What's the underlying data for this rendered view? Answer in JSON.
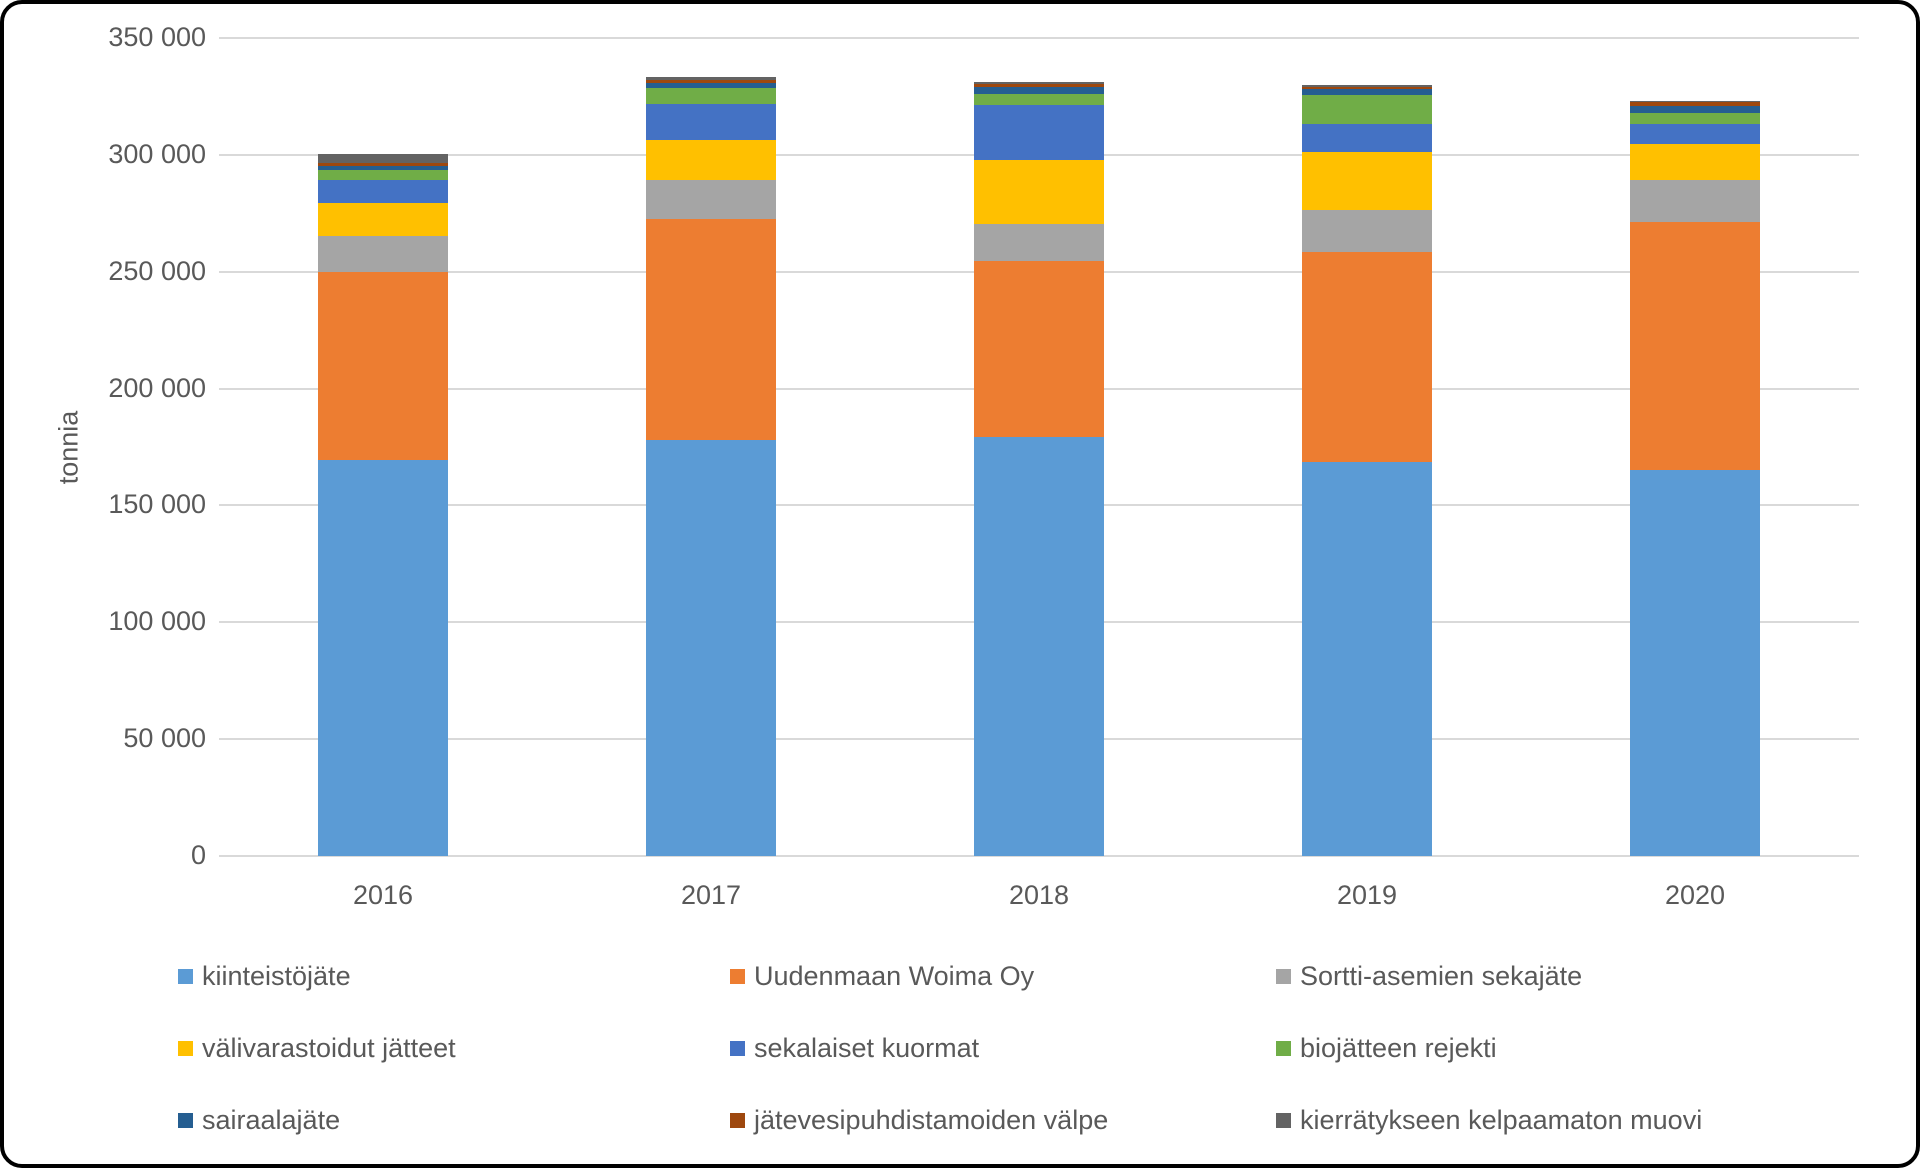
{
  "chart_data": {
    "type": "bar",
    "stacked": true,
    "title": "",
    "xlabel": "",
    "ylabel": "tonnia",
    "categories": [
      "2016",
      "2017",
      "2018",
      "2019",
      "2020"
    ],
    "series": [
      {
        "name": "kiinteistöjäte",
        "color": "#5B9BD5",
        "values": [
          169500,
          178100,
          179100,
          168500,
          165200
        ]
      },
      {
        "name": "Uudenmaan Woima Oy",
        "color": "#ED7D31",
        "values": [
          80400,
          94400,
          75500,
          89900,
          106100
        ]
      },
      {
        "name": "Sortti-asemien sekajäte",
        "color": "#A5A5A5",
        "values": [
          15300,
          16600,
          15900,
          17900,
          17800
        ]
      },
      {
        "name": "välivarastoidut jätteet",
        "color": "#FFC000",
        "values": [
          14300,
          17400,
          27400,
          24800,
          15700
        ]
      },
      {
        "name": "sekalaiset kuormat",
        "color": "#4472C4",
        "values": [
          9600,
          15400,
          23300,
          12100,
          8600
        ]
      },
      {
        "name": "biojätteen rejekti",
        "color": "#70AD47",
        "values": [
          4300,
          6800,
          5000,
          12600,
          4300
        ]
      },
      {
        "name": "sairaalajäte",
        "color": "#255E91",
        "values": [
          2000,
          2100,
          2900,
          2300,
          3400
        ]
      },
      {
        "name": "jätevesipuhdistamoiden välpe",
        "color": "#9E480E",
        "values": [
          1100,
          1300,
          1100,
          1100,
          1400
        ]
      },
      {
        "name": "kierrätykseen kelpaamaton muovi",
        "color": "#636363",
        "values": [
          3700,
          1300,
          1000,
          900,
          400
        ]
      }
    ],
    "y_axis": {
      "min": 0,
      "max": 350000,
      "tick_step": 50000,
      "tick_labels": [
        "0",
        "50 000",
        "100 000",
        "150 000",
        "200 000",
        "250 000",
        "300 000",
        "350 000"
      ]
    },
    "grid": true,
    "legend_position": "bottom",
    "legend_columns": 3,
    "colors": {
      "text": "#595959",
      "gridline": "#d9d9d9",
      "background": "#ffffff",
      "frame_border": "#000000"
    }
  }
}
